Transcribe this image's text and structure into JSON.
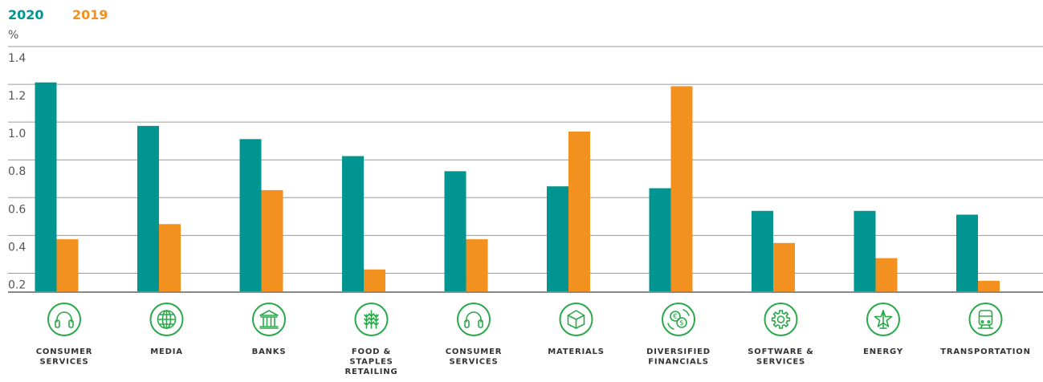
{
  "chart_data": {
    "type": "bar",
    "unit_label": "%",
    "categories": [
      "CONSUMER SERVICES",
      "MEDIA",
      "BANKS",
      "FOOD & STAPLES RETAILING",
      "CONSUMER SERVICES",
      "MATERIALS",
      "DIVERSIFIED FINANCIALS",
      "SOFTWARE & SERVICES",
      "ENERGY",
      "TRANSPORTATION"
    ],
    "category_lines": [
      [
        "CONSUMER",
        "SERVICES"
      ],
      [
        "MEDIA"
      ],
      [
        "BANKS"
      ],
      [
        "FOOD &",
        "STAPLES",
        "RETAILING"
      ],
      [
        "CONSUMER",
        "SERVICES"
      ],
      [
        "MATERIALS"
      ],
      [
        "DIVERSIFIED",
        "FINANCIALS"
      ],
      [
        "SOFTWARE &",
        "SERVICES"
      ],
      [
        "ENERGY"
      ],
      [
        "TRANSPORTATION"
      ]
    ],
    "category_icons": [
      "headphones-icon",
      "globe-icon",
      "bank-building-icon",
      "wheat-icon",
      "headphones-icon",
      "cube-icon",
      "currency-exchange-icon",
      "gear-icon",
      "energy-star-icon",
      "train-icon"
    ],
    "series": [
      {
        "name": "2020",
        "color": "#009591",
        "values": [
          1.21,
          0.98,
          0.91,
          0.82,
          0.74,
          0.66,
          0.65,
          0.53,
          0.53,
          0.51
        ]
      },
      {
        "name": "2019",
        "color": "#f39120",
        "values": [
          0.38,
          0.46,
          0.64,
          0.22,
          0.38,
          0.95,
          1.19,
          0.36,
          0.28,
          0.16
        ]
      }
    ],
    "ylim": [
      0.1,
      1.4
    ],
    "yticks": [
      "1.4",
      "1.2",
      "1.0",
      "0.8",
      "0.6",
      "0.4",
      "0.2"
    ],
    "ytick_values": [
      1.4,
      1.2,
      1.0,
      0.8,
      0.6,
      0.4,
      0.2
    ],
    "grid": true,
    "legend_position": "top-left",
    "icon_color": "#2aa84a"
  }
}
